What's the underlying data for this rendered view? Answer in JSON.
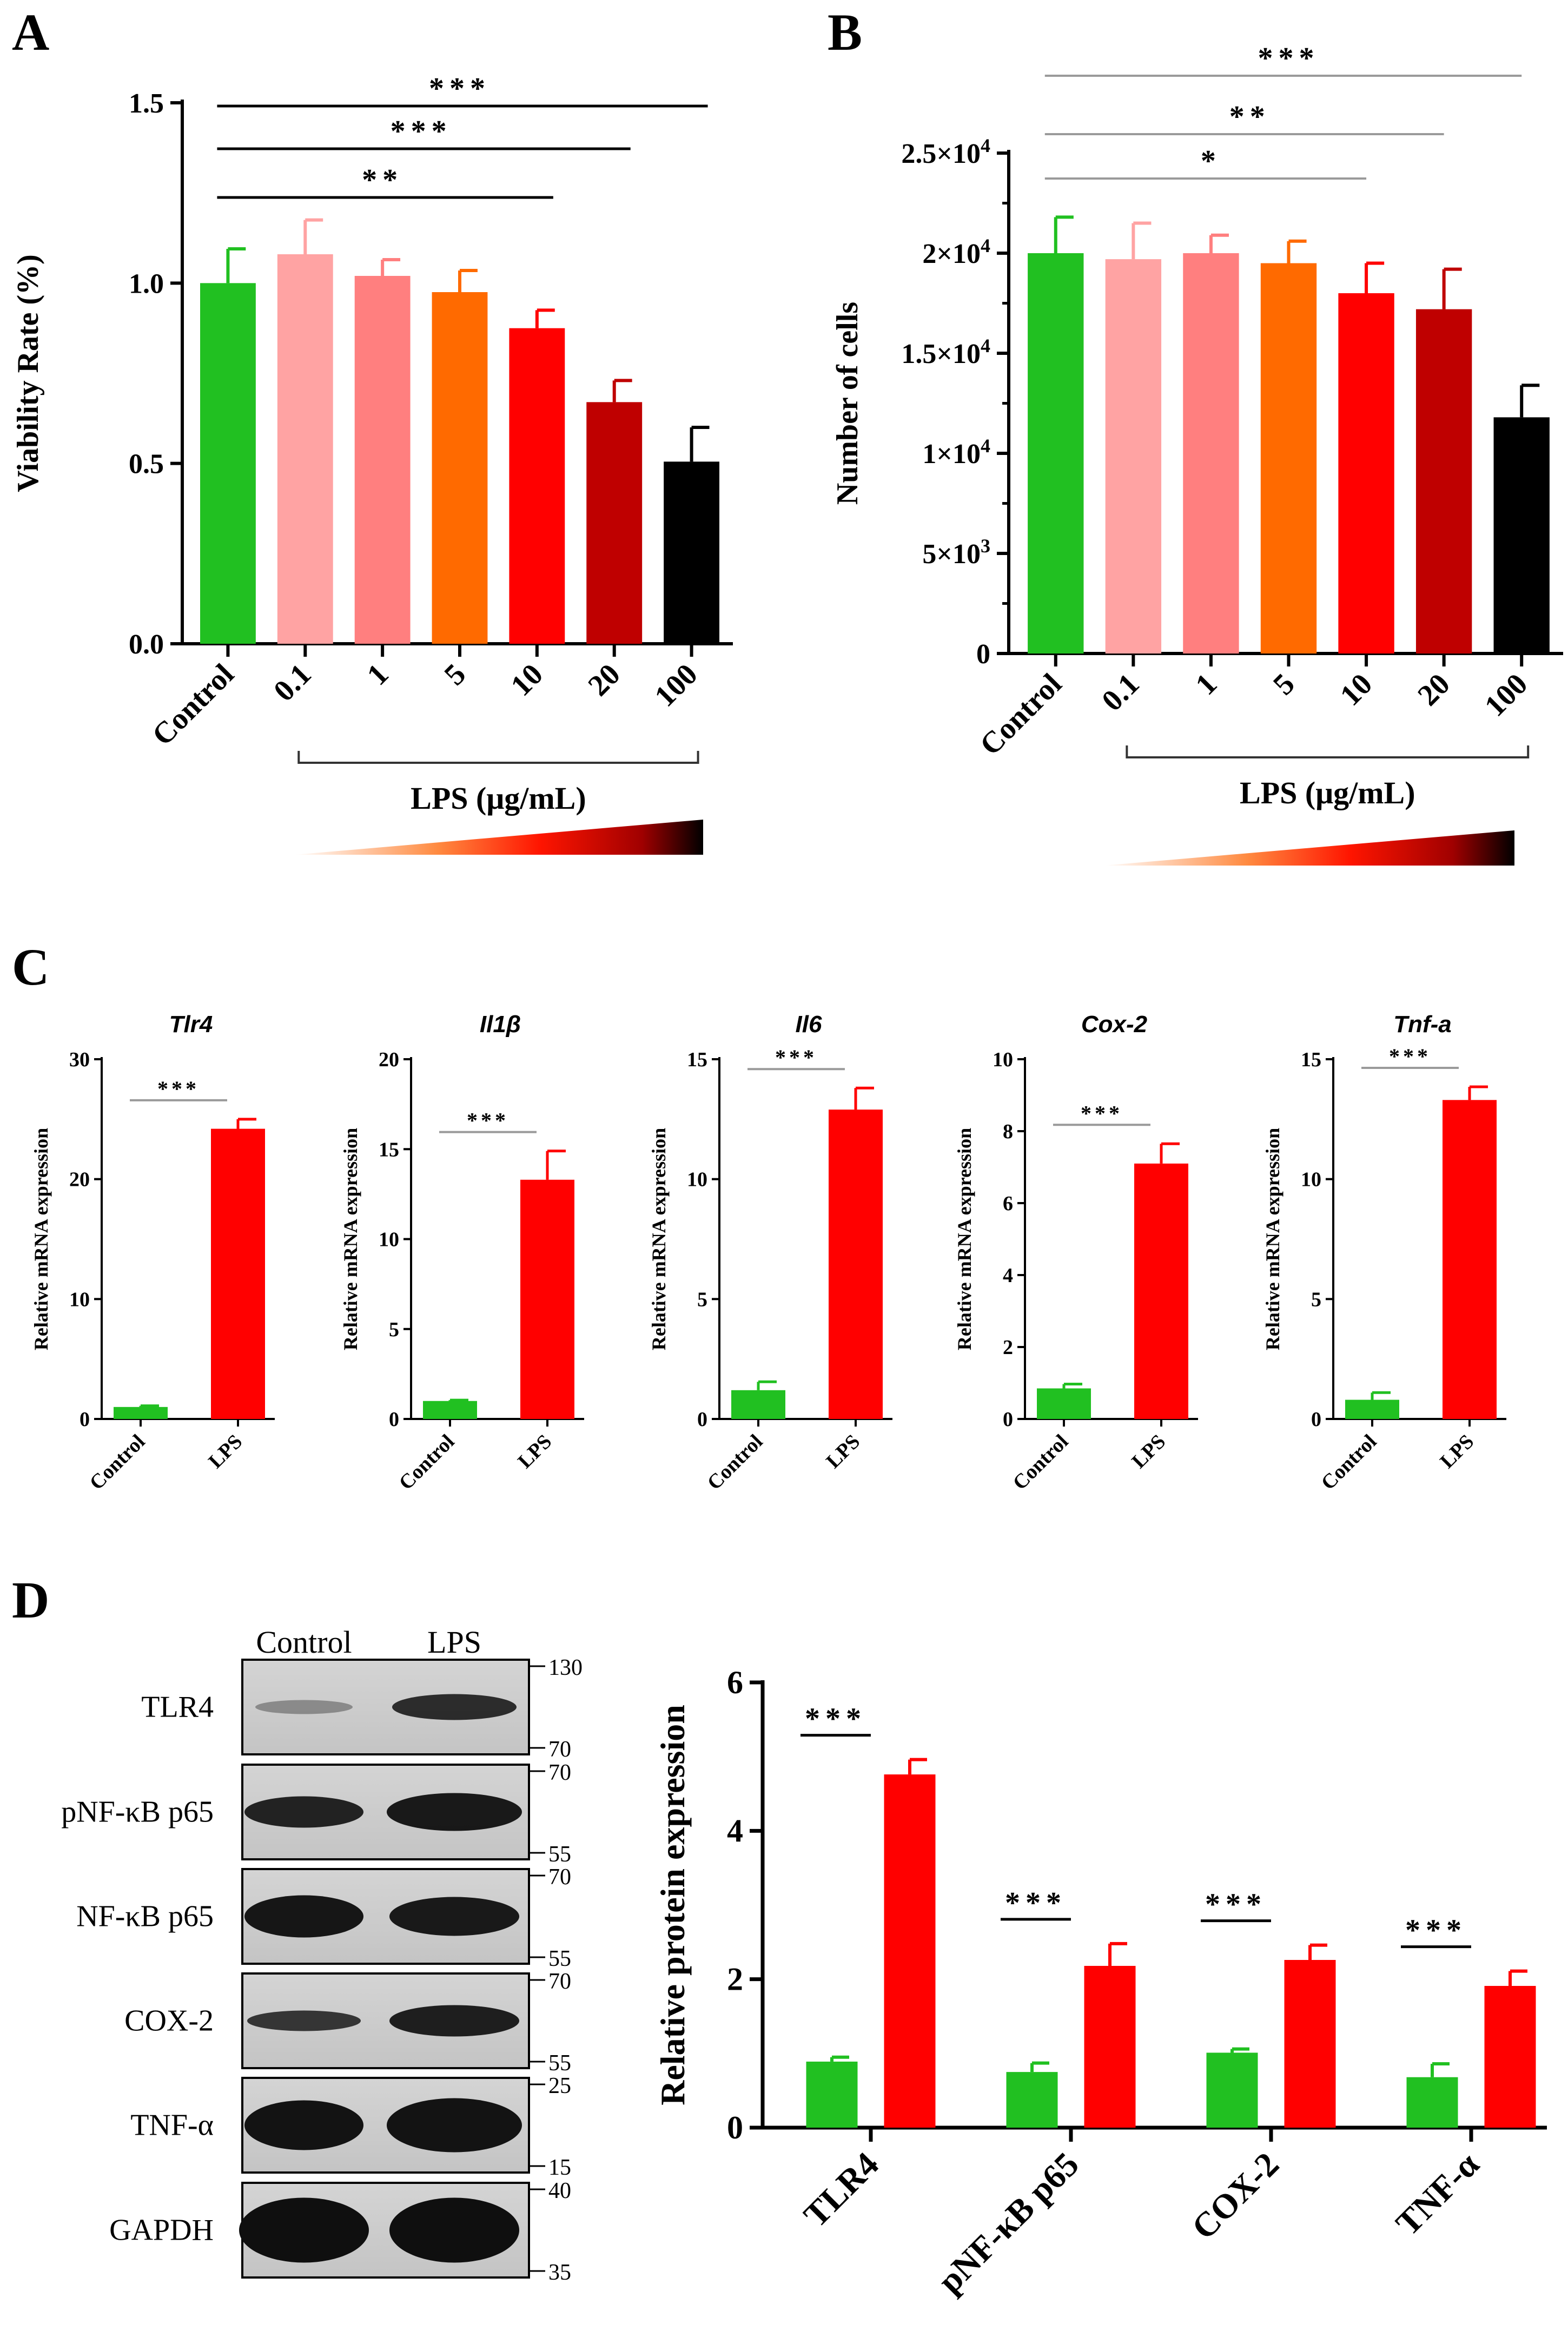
{
  "colors": {
    "control": "#21c021",
    "lps_bars": [
      "#ffa3a3",
      "#ff7f7f",
      "#ff6a00",
      "#ff0000",
      "#bf0000",
      "#000000"
    ],
    "lps": "#ff0000",
    "axis": "#000000",
    "sigline": "#9a9a9a"
  },
  "panel_labels": [
    "A",
    "B",
    "C",
    "D"
  ],
  "chart_data": [
    {
      "id": "A",
      "type": "bar",
      "ylabel": "Viability Rate (%)",
      "xgroup_label": "LPS (μg/mL)",
      "categories": [
        "Control",
        "0.1",
        "1",
        "5",
        "10",
        "20",
        "100"
      ],
      "values": [
        1.0,
        1.08,
        1.02,
        0.975,
        0.875,
        0.67,
        0.505
      ],
      "errors": [
        0.095,
        0.095,
        0.045,
        0.06,
        0.05,
        0.06,
        0.095
      ],
      "ylim": [
        0,
        1.5
      ],
      "yticks": [
        "0.0",
        "0.5",
        "1.0",
        "1.5"
      ],
      "significance": [
        {
          "from": 0,
          "to": 6,
          "label": "***"
        },
        {
          "from": 0,
          "to": 5,
          "label": "***"
        },
        {
          "from": 0,
          "to": 4,
          "label": "**"
        }
      ]
    },
    {
      "id": "B",
      "type": "bar",
      "ylabel": "Number of cells",
      "xgroup_label": "LPS (μg/mL)",
      "categories": [
        "Control",
        "0.1",
        "1",
        "5",
        "10",
        "20",
        "100"
      ],
      "values": [
        20000,
        19700,
        20000,
        19500,
        18000,
        17200,
        11800
      ],
      "errors": [
        1800,
        1800,
        900,
        1100,
        1500,
        2000,
        1600
      ],
      "ylim": [
        0,
        25000
      ],
      "yticks": [
        {
          "base": "0",
          "exp": ""
        },
        {
          "base": "5×10",
          "exp": "3"
        },
        {
          "base": "1×10",
          "exp": "4"
        },
        {
          "base": "1.5×10",
          "exp": "4"
        },
        {
          "base": "2×10",
          "exp": "4"
        },
        {
          "base": "2.5×10",
          "exp": "4"
        }
      ],
      "significance": [
        {
          "from": 0,
          "to": 6,
          "label": "***"
        },
        {
          "from": 0,
          "to": 5,
          "label": "**"
        },
        {
          "from": 0,
          "to": 4,
          "label": "*"
        }
      ]
    },
    {
      "id": "C1",
      "type": "bar",
      "title": "Tlr4",
      "ylabel": "Relative mRNA expression",
      "categories": [
        "Control",
        "LPS"
      ],
      "values": [
        1.0,
        24.2
      ],
      "errors": [
        0.1,
        0.8
      ],
      "ylim": [
        0,
        30
      ],
      "yticks": [
        "0",
        "10",
        "20",
        "30"
      ],
      "significance": "***"
    },
    {
      "id": "C2",
      "type": "bar",
      "title": "Il1β",
      "ylabel": "Relative mRNA expression",
      "categories": [
        "Control",
        "LPS"
      ],
      "values": [
        1.0,
        13.3
      ],
      "errors": [
        0.05,
        1.6
      ],
      "ylim": [
        0,
        20
      ],
      "yticks": [
        "0",
        "5",
        "10",
        "15",
        "20"
      ],
      "significance": "***"
    },
    {
      "id": "C3",
      "type": "bar",
      "title": "Il6",
      "ylabel": "Relative mRNA expression",
      "categories": [
        "Control",
        "LPS"
      ],
      "values": [
        1.2,
        12.9
      ],
      "errors": [
        0.35,
        0.9
      ],
      "ylim": [
        0,
        15
      ],
      "yticks": [
        "0",
        "5",
        "10",
        "15"
      ],
      "significance": "***"
    },
    {
      "id": "C4",
      "type": "bar",
      "title": "Cox-2",
      "ylabel": "Relative mRNA expression",
      "categories": [
        "Control",
        "LPS"
      ],
      "values": [
        0.85,
        7.1
      ],
      "errors": [
        0.12,
        0.55
      ],
      "ylim": [
        0,
        10
      ],
      "yticks": [
        "0",
        "2",
        "4",
        "6",
        "8",
        "10"
      ],
      "significance": "***"
    },
    {
      "id": "C5",
      "type": "bar",
      "title": "Tnf-a",
      "ylabel": "Relative mRNA expression",
      "categories": [
        "Control",
        "LPS"
      ],
      "values": [
        0.8,
        13.3
      ],
      "errors": [
        0.3,
        0.55
      ],
      "ylim": [
        0,
        15
      ],
      "yticks": [
        "0",
        "5",
        "10",
        "15"
      ],
      "significance": "***"
    },
    {
      "id": "D",
      "type": "bar",
      "ylabel": "Relative protein expression",
      "categories": [
        "TLR4",
        "pNF-κB p65",
        "COX-2",
        "TNF-α"
      ],
      "series": [
        {
          "name": "Control",
          "values": [
            0.89,
            0.75,
            1.01,
            0.68
          ],
          "errors": [
            0.06,
            0.12,
            0.05,
            0.18
          ]
        },
        {
          "name": "LPS",
          "values": [
            4.76,
            2.18,
            2.26,
            1.91
          ],
          "errors": [
            0.2,
            0.3,
            0.2,
            0.2
          ]
        }
      ],
      "ylim": [
        0,
        6
      ],
      "yticks": [
        "0",
        "2",
        "4",
        "6"
      ],
      "significance": [
        "***",
        "***",
        "***",
        "***"
      ]
    }
  ],
  "western_blot": {
    "columns": [
      "Control",
      "LPS"
    ],
    "rows": [
      {
        "label": "TLR4",
        "mw_top": "130",
        "mw_bottom": "70"
      },
      {
        "label": "pNF-κB p65",
        "mw_top": "70",
        "mw_bottom": "55"
      },
      {
        "label": "NF-κB p65",
        "mw_top": "70",
        "mw_bottom": "55"
      },
      {
        "label": "COX-2",
        "mw_top": "70",
        "mw_bottom": "55"
      },
      {
        "label": "TNF-α",
        "mw_top": "25",
        "mw_bottom": "15"
      },
      {
        "label": "GAPDH",
        "mw_top": "40",
        "mw_bottom": "35"
      }
    ]
  }
}
